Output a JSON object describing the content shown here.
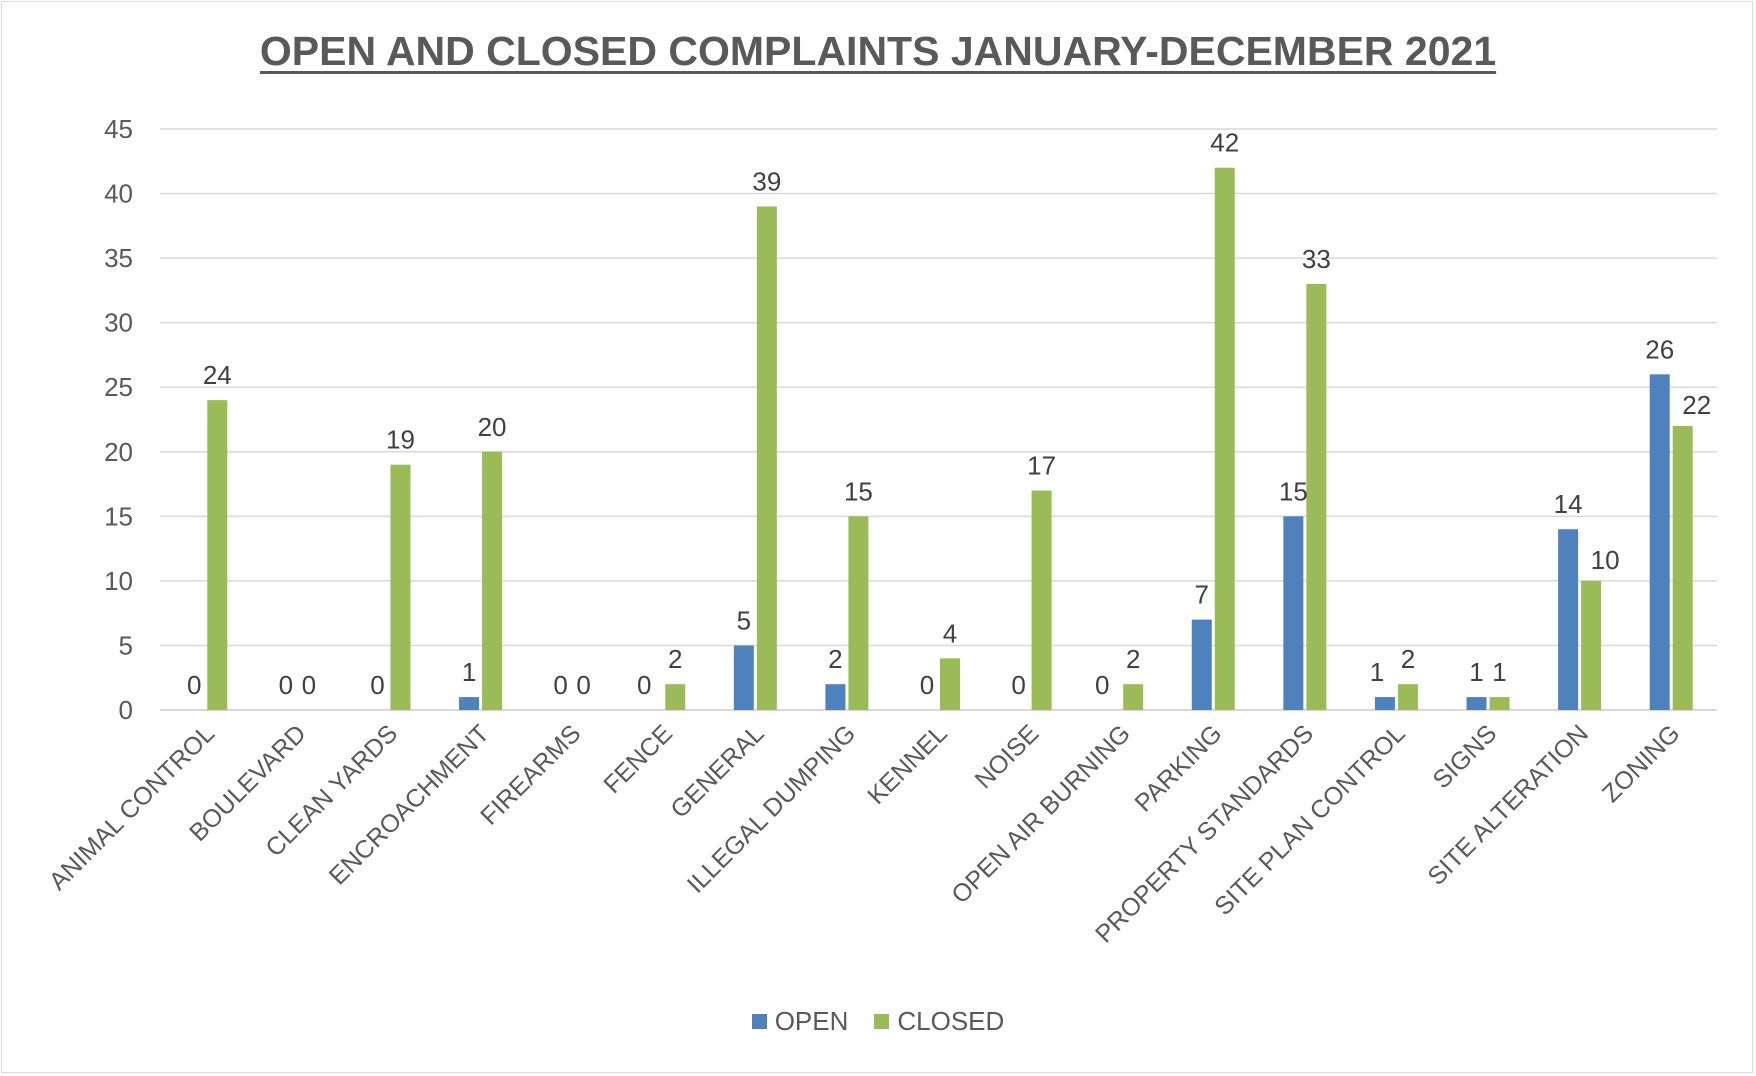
{
  "chart_data": {
    "type": "bar",
    "title": "OPEN AND CLOSED COMPLAINTS JANUARY-DECEMBER 2021",
    "xlabel": "",
    "ylabel": "",
    "ylim": [
      0,
      45
    ],
    "yticks": [
      0,
      5,
      10,
      15,
      20,
      25,
      30,
      35,
      40,
      45
    ],
    "grid": true,
    "legend_position": "bottom",
    "categories": [
      "ANIMAL CONTROL",
      "BOULEVARD",
      "CLEAN YARDS",
      "ENCROACHMENT",
      "FIREARMS",
      "FENCE",
      "GENERAL",
      "ILLEGAL DUMPING",
      "KENNEL",
      "NOISE",
      "OPEN AIR BURNING",
      "PARKING",
      "PROPERTY STANDARDS",
      "SITE PLAN CONTROL",
      "SIGNS",
      "SITE ALTERATION",
      "ZONING"
    ],
    "series": [
      {
        "name": "OPEN",
        "color": "#4f81bd",
        "values": [
          0,
          0,
          0,
          1,
          0,
          0,
          5,
          2,
          0,
          0,
          0,
          7,
          15,
          1,
          1,
          14,
          26
        ]
      },
      {
        "name": "CLOSED",
        "color": "#9bbb59",
        "values": [
          24,
          0,
          19,
          20,
          0,
          2,
          39,
          15,
          4,
          17,
          2,
          42,
          33,
          2,
          1,
          10,
          22
        ]
      }
    ]
  }
}
